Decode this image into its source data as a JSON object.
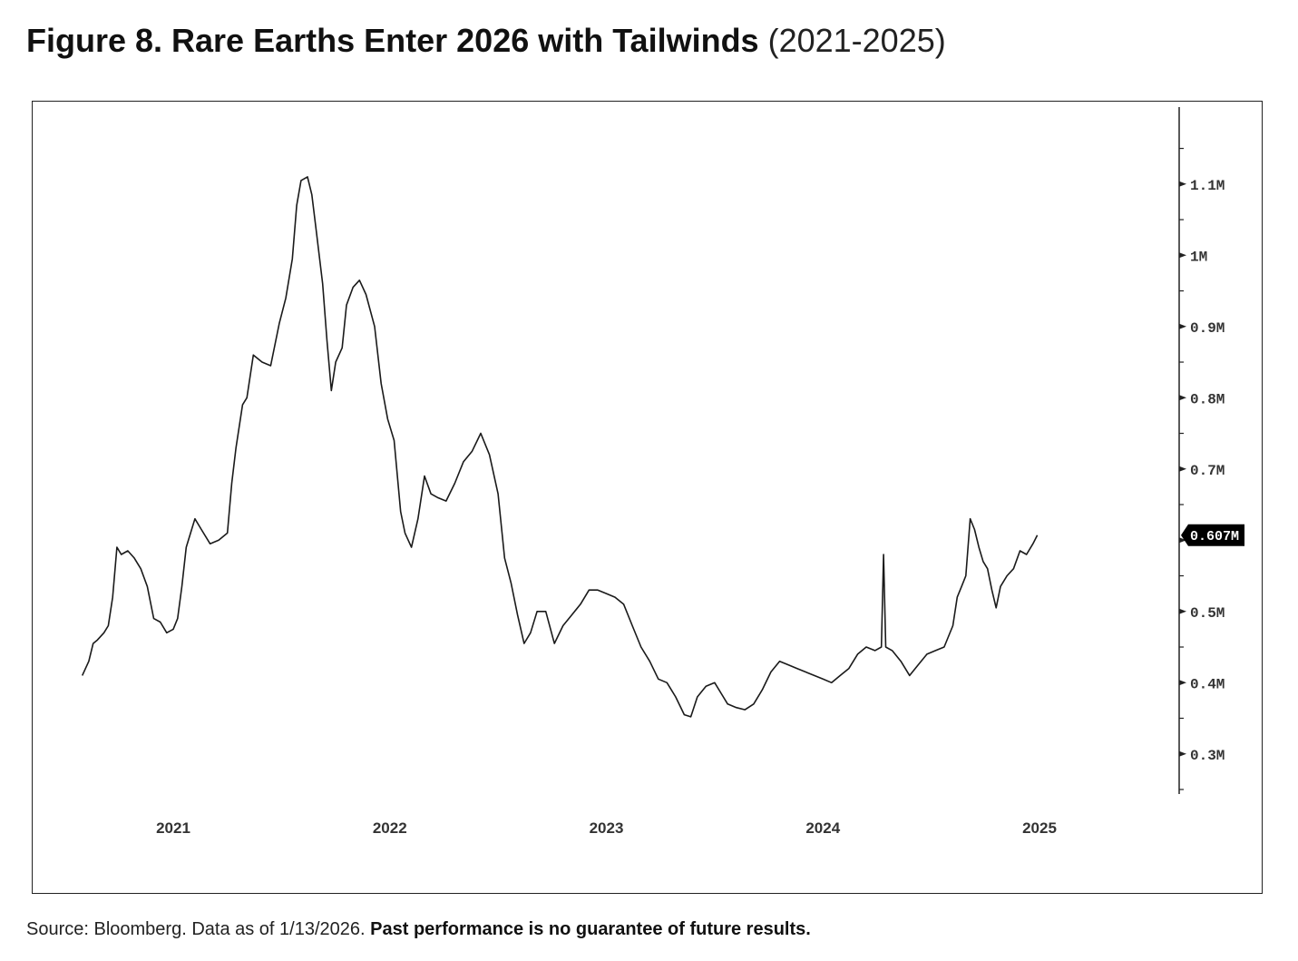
{
  "title": {
    "main": "Figure 8. Rare Earths Enter 2026 with Tailwinds",
    "sub": "(2021-2025)"
  },
  "source": {
    "text": "Source: Bloomberg. Data as of 1/13/2026.",
    "disclaimer": "Past performance is no guarantee of future results."
  },
  "colors": {
    "line": "#1a1a1a",
    "axis": "#222222",
    "badge_bg": "#000000",
    "badge_text": "#ffffff"
  },
  "chart_data": {
    "type": "line",
    "title": "Figure 8. Rare Earths Enter 2026 with Tailwinds (2021-2025)",
    "xlabel": "",
    "ylabel": "",
    "ylim": [
      0.25,
      1.18
    ],
    "y_ticks": [
      {
        "value": 0.3,
        "label": "0.3M"
      },
      {
        "value": 0.4,
        "label": "0.4M"
      },
      {
        "value": 0.5,
        "label": "0.5M"
      },
      {
        "value": 0.6,
        "label": "0.6M",
        "hidden": true
      },
      {
        "value": 0.7,
        "label": "0.7M"
      },
      {
        "value": 0.8,
        "label": "0.8M"
      },
      {
        "value": 0.9,
        "label": "0.9M"
      },
      {
        "value": 1.0,
        "label": "1M"
      },
      {
        "value": 1.1,
        "label": "1.1M"
      }
    ],
    "x_ticks": [
      {
        "value": 2021.0,
        "label": "2021"
      },
      {
        "value": 2022.0,
        "label": "2022"
      },
      {
        "value": 2023.0,
        "label": "2023"
      },
      {
        "value": 2024.0,
        "label": "2024"
      },
      {
        "value": 2025.0,
        "label": "2025"
      }
    ],
    "xlim": [
      2020.42,
      2025.62
    ],
    "last_value_label": "0.607M",
    "last_value": 0.607,
    "series": [
      {
        "name": "Rare Earths",
        "points": [
          [
            2020.58,
            0.41
          ],
          [
            2020.61,
            0.43
          ],
          [
            2020.63,
            0.455
          ],
          [
            2020.65,
            0.46
          ],
          [
            2020.68,
            0.47
          ],
          [
            2020.7,
            0.48
          ],
          [
            2020.72,
            0.52
          ],
          [
            2020.74,
            0.59
          ],
          [
            2020.76,
            0.58
          ],
          [
            2020.79,
            0.585
          ],
          [
            2020.82,
            0.575
          ],
          [
            2020.85,
            0.56
          ],
          [
            2020.88,
            0.535
          ],
          [
            2020.91,
            0.49
          ],
          [
            2020.94,
            0.485
          ],
          [
            2020.97,
            0.47
          ],
          [
            2021.0,
            0.475
          ],
          [
            2021.02,
            0.49
          ],
          [
            2021.04,
            0.535
          ],
          [
            2021.06,
            0.59
          ],
          [
            2021.08,
            0.61
          ],
          [
            2021.1,
            0.63
          ],
          [
            2021.13,
            0.615
          ],
          [
            2021.17,
            0.595
          ],
          [
            2021.21,
            0.6
          ],
          [
            2021.25,
            0.61
          ],
          [
            2021.27,
            0.68
          ],
          [
            2021.29,
            0.73
          ],
          [
            2021.32,
            0.79
          ],
          [
            2021.34,
            0.8
          ],
          [
            2021.37,
            0.86
          ],
          [
            2021.41,
            0.85
          ],
          [
            2021.45,
            0.845
          ],
          [
            2021.49,
            0.905
          ],
          [
            2021.52,
            0.94
          ],
          [
            2021.55,
            0.995
          ],
          [
            2021.57,
            1.07
          ],
          [
            2021.59,
            1.105
          ],
          [
            2021.62,
            1.11
          ],
          [
            2021.64,
            1.085
          ],
          [
            2021.66,
            1.035
          ],
          [
            2021.69,
            0.96
          ],
          [
            2021.71,
            0.88
          ],
          [
            2021.73,
            0.81
          ],
          [
            2021.75,
            0.85
          ],
          [
            2021.78,
            0.87
          ],
          [
            2021.8,
            0.93
          ],
          [
            2021.83,
            0.955
          ],
          [
            2021.86,
            0.965
          ],
          [
            2021.89,
            0.945
          ],
          [
            2021.93,
            0.9
          ],
          [
            2021.96,
            0.82
          ],
          [
            2021.99,
            0.77
          ],
          [
            2022.02,
            0.74
          ],
          [
            2022.05,
            0.64
          ],
          [
            2022.07,
            0.61
          ],
          [
            2022.1,
            0.59
          ],
          [
            2022.13,
            0.63
          ],
          [
            2022.16,
            0.69
          ],
          [
            2022.19,
            0.665
          ],
          [
            2022.22,
            0.66
          ],
          [
            2022.26,
            0.655
          ],
          [
            2022.3,
            0.68
          ],
          [
            2022.34,
            0.71
          ],
          [
            2022.38,
            0.725
          ],
          [
            2022.42,
            0.75
          ],
          [
            2022.46,
            0.72
          ],
          [
            2022.5,
            0.665
          ],
          [
            2022.53,
            0.575
          ],
          [
            2022.56,
            0.54
          ],
          [
            2022.59,
            0.495
          ],
          [
            2022.62,
            0.455
          ],
          [
            2022.65,
            0.47
          ],
          [
            2022.68,
            0.5
          ],
          [
            2022.72,
            0.5
          ],
          [
            2022.76,
            0.455
          ],
          [
            2022.8,
            0.48
          ],
          [
            2022.84,
            0.495
          ],
          [
            2022.88,
            0.51
          ],
          [
            2022.92,
            0.53
          ],
          [
            2022.96,
            0.53
          ],
          [
            2023.0,
            0.525
          ],
          [
            2023.04,
            0.52
          ],
          [
            2023.08,
            0.51
          ],
          [
            2023.12,
            0.48
          ],
          [
            2023.16,
            0.45
          ],
          [
            2023.2,
            0.43
          ],
          [
            2023.24,
            0.405
          ],
          [
            2023.28,
            0.4
          ],
          [
            2023.32,
            0.38
          ],
          [
            2023.36,
            0.355
          ],
          [
            2023.39,
            0.352
          ],
          [
            2023.42,
            0.38
          ],
          [
            2023.46,
            0.395
          ],
          [
            2023.5,
            0.4
          ],
          [
            2023.53,
            0.385
          ],
          [
            2023.56,
            0.37
          ],
          [
            2023.6,
            0.365
          ],
          [
            2023.64,
            0.362
          ],
          [
            2023.68,
            0.37
          ],
          [
            2023.72,
            0.39
          ],
          [
            2023.76,
            0.415
          ],
          [
            2023.8,
            0.43
          ],
          [
            2023.84,
            0.425
          ],
          [
            2023.88,
            0.42
          ],
          [
            2023.92,
            0.415
          ],
          [
            2023.96,
            0.41
          ],
          [
            2024.0,
            0.405
          ],
          [
            2024.04,
            0.4
          ],
          [
            2024.08,
            0.41
          ],
          [
            2024.12,
            0.42
          ],
          [
            2024.16,
            0.44
          ],
          [
            2024.2,
            0.45
          ],
          [
            2024.24,
            0.445
          ],
          [
            2024.27,
            0.45
          ],
          [
            2024.28,
            0.58
          ],
          [
            2024.29,
            0.45
          ],
          [
            2024.32,
            0.445
          ],
          [
            2024.36,
            0.43
          ],
          [
            2024.4,
            0.41
          ],
          [
            2024.44,
            0.425
          ],
          [
            2024.48,
            0.44
          ],
          [
            2024.52,
            0.445
          ],
          [
            2024.56,
            0.45
          ],
          [
            2024.6,
            0.48
          ],
          [
            2024.62,
            0.52
          ],
          [
            2024.64,
            0.535
          ],
          [
            2024.66,
            0.55
          ],
          [
            2024.68,
            0.63
          ],
          [
            2024.7,
            0.615
          ],
          [
            2024.72,
            0.59
          ],
          [
            2024.74,
            0.57
          ],
          [
            2024.76,
            0.56
          ],
          [
            2024.78,
            0.53
          ],
          [
            2024.8,
            0.505
          ],
          [
            2024.82,
            0.535
          ],
          [
            2024.85,
            0.55
          ],
          [
            2024.88,
            0.56
          ],
          [
            2024.91,
            0.585
          ],
          [
            2024.94,
            0.58
          ],
          [
            2024.97,
            0.595
          ],
          [
            2024.99,
            0.607
          ]
        ]
      }
    ]
  }
}
